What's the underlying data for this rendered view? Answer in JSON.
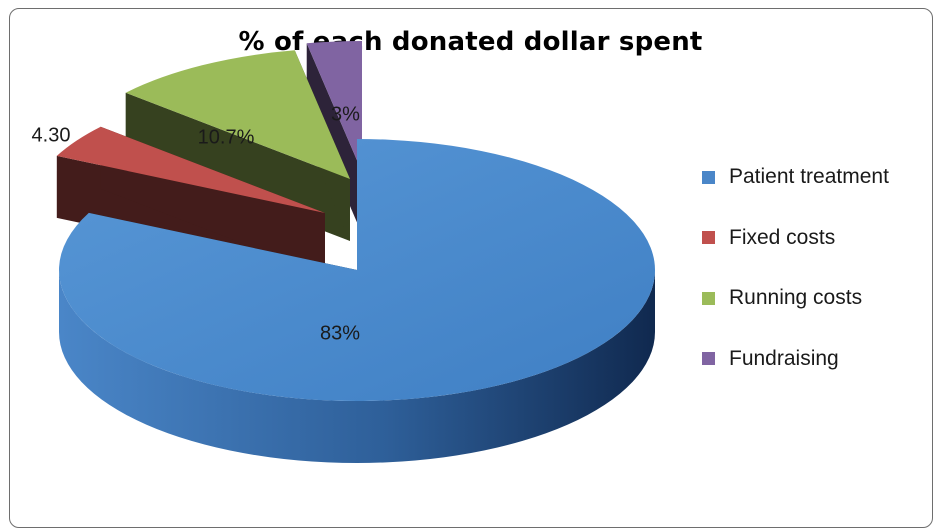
{
  "chart_data": {
    "type": "pie",
    "title": "% of each donated dollar spent",
    "categories": [
      "Patient treatment",
      "Fixed costs",
      "Running costs",
      "Fundraising"
    ],
    "values": [
      83,
      4.3,
      10.7,
      3
    ],
    "data_labels": [
      "83%",
      "4.30",
      "10.7%",
      "3%"
    ],
    "colors": {
      "Patient treatment": "#4a86c8",
      "Fixed costs": "#c0504d",
      "Running costs": "#9bbb59",
      "Fundraising": "#8064a2"
    },
    "legend_position": "right",
    "style": "3d-exploded"
  }
}
